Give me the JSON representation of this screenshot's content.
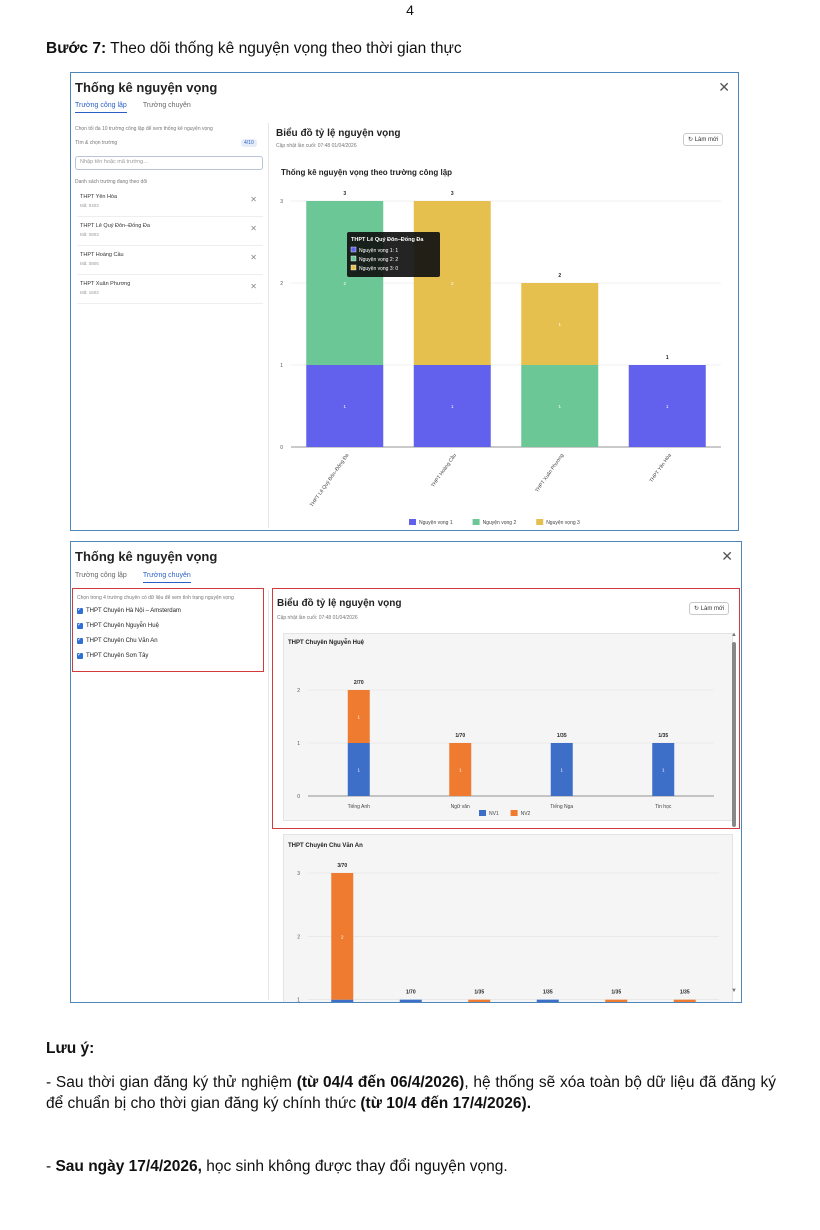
{
  "page_number": "4",
  "step": {
    "label": "Bước 7:",
    "text": " Theo dõi thống kê nguyện vọng theo thời gian thực"
  },
  "shot1": {
    "title": "Thống kê nguyện vọng",
    "tabs": [
      "Trường công lập",
      "Trường chuyên"
    ],
    "active_tab": 0,
    "hint": "Chọn tối đa 10 trường công lập để xem thống kê nguyện vọng",
    "search_label": "Tìm & chọn trường",
    "count": "4/10",
    "search_placeholder": "Nhập tên hoặc mã trường...",
    "list_label": "Danh sách trường đang theo dõi",
    "schools": [
      {
        "name": "THPT Yên Hòa",
        "code": "Mã: 0403"
      },
      {
        "name": "THPT Lê Quý Đôn–Đống Đa",
        "code": "Mã: 0803"
      },
      {
        "name": "THPT Hoàng Cầu",
        "code": "Mã: 0805"
      },
      {
        "name": "THPT Xuân Phương",
        "code": "Mã: 1603"
      }
    ],
    "chart_header": "Biểu đồ tỷ lệ nguyện vọng",
    "updated": "Cập nhật lần cuối: 07:48 01/04/2026",
    "refresh": "↻ Làm mới",
    "tooltip": {
      "title": "THPT Lê Quý Đôn–Đống Đa",
      "lines": [
        "Nguyện vọng 1: 1",
        "Nguyện vọng 2: 2",
        "Nguyện vọng 3: 0"
      ]
    }
  },
  "shot2": {
    "title": "Thống kê nguyện vọng",
    "tabs": [
      "Trường công lập",
      "Trường chuyên"
    ],
    "active_tab": 1,
    "hint": "Chọn trong 4 trường chuyên có dữ liệu để xem tình trạng nguyện vọng",
    "schools": [
      "THPT Chuyên Hà Nội – Amsterdam",
      "THPT Chuyên Nguyễn Huệ",
      "THPT Chuyên Chu Văn An",
      "THPT Chuyên Sơn Tây"
    ],
    "chart_header": "Biểu đồ tỷ lệ nguyện vọng",
    "updated": "Cập nhật lần cuối: 07:48 01/04/2026",
    "refresh": "↻ Làm mới"
  },
  "chart_data": [
    {
      "type": "bar",
      "stacked": true,
      "title": "Thống kê nguyện vọng theo trường công lập",
      "categories": [
        "THPT Lê Quý Đôn–Đống Đa",
        "THPT Hoàng Cầu",
        "THPT Xuân Phương",
        "THPT Yên Hòa"
      ],
      "series": [
        {
          "name": "Nguyện vọng 1",
          "color": "#6161ee",
          "values": [
            1,
            1,
            0,
            1
          ]
        },
        {
          "name": "Nguyện vọng 2",
          "color": "#6cc796",
          "values": [
            2,
            0,
            1,
            0
          ]
        },
        {
          "name": "Nguyện vọng 3",
          "color": "#e6c04e",
          "values": [
            0,
            2,
            1,
            0
          ]
        }
      ],
      "totals": [
        "3",
        "3",
        "2",
        "1"
      ],
      "ylim": [
        0,
        3
      ],
      "yticks": [
        "0",
        "1",
        "2",
        "3"
      ],
      "legend": "bottom"
    },
    {
      "type": "bar",
      "stacked": true,
      "title": "THPT Chuyên Nguyễn Huệ",
      "categories": [
        "Tiếng Anh",
        "Ngữ văn",
        "Tiếng Nga",
        "Tin học"
      ],
      "series": [
        {
          "name": "NV1",
          "color": "#3d6fc9",
          "values": [
            1,
            0,
            1,
            1
          ]
        },
        {
          "name": "NV2",
          "color": "#ee7b30",
          "values": [
            1,
            1,
            0,
            0
          ]
        }
      ],
      "totals": [
        "2/70",
        "1/70",
        "1/35",
        "1/35"
      ],
      "ylim": [
        0,
        2
      ],
      "yticks": [
        "0",
        "1",
        "2"
      ],
      "legend": "bottom"
    },
    {
      "type": "bar",
      "stacked": true,
      "title": "THPT Chuyên Chu Văn An",
      "categories": [
        "",
        "",
        "",
        "",
        "",
        ""
      ],
      "series": [
        {
          "name": "NV1",
          "color": "#3d6fc9",
          "values": [
            1,
            1,
            0,
            1,
            0,
            0
          ]
        },
        {
          "name": "NV2",
          "color": "#ee7b30",
          "values": [
            2,
            0,
            1,
            0,
            1,
            1
          ]
        }
      ],
      "totals": [
        "3/70",
        "1/70",
        "1/35",
        "1/35",
        "1/35",
        "1/35"
      ],
      "ylim": [
        0,
        3
      ],
      "yticks": [
        "1",
        "2",
        "3"
      ],
      "legend": "none"
    }
  ],
  "note": {
    "heading": "Lưu ý:",
    "p1": [
      {
        "t": "- Sau thời gian đăng ký thử nghiệm ",
        "b": false
      },
      {
        "t": "(từ 04/4 đến 06/4/2026)",
        "b": true
      },
      {
        "t": ", hệ thống sẽ xóa toàn bộ dữ liệu đã đăng ký để chuẩn bị cho thời gian đăng ký chính thức ",
        "b": false
      },
      {
        "t": "(từ 10/4 đến 17/4/2026).",
        "b": true
      }
    ],
    "p2": [
      {
        "t": "- ",
        "b": false
      },
      {
        "t": "Sau ngày 17/4/2026,",
        "b": true
      },
      {
        "t": " học sinh không được thay đổi nguyện vọng.",
        "b": false
      }
    ]
  }
}
